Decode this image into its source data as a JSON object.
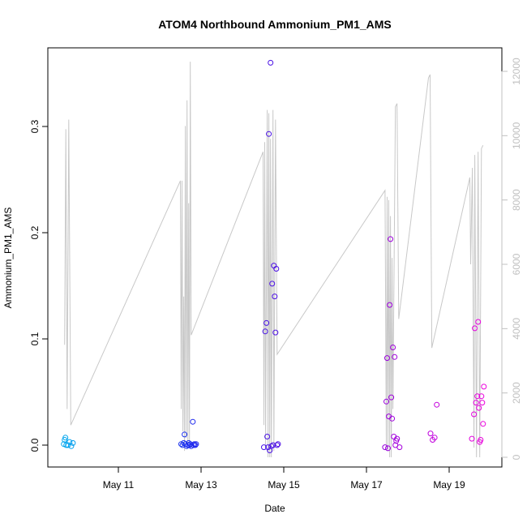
{
  "chart_data": {
    "type": "scatter",
    "title": "ATOM4 Northbound Ammonium_PM1_AMS",
    "xlabel": "Date",
    "ylabel": "Ammonium_PM1_AMS",
    "x_ticks": [
      "May 11",
      "May 13",
      "May 15",
      "May 17",
      "May 19"
    ],
    "x_range_days": [
      9.75,
      19.95
    ],
    "ylim": [
      -0.01,
      0.36
    ],
    "y_ticks": [
      "0.0",
      "0.1",
      "0.2",
      "0.3"
    ],
    "y2_ticks": [
      "0",
      "2000",
      "4000",
      "6000",
      "8000",
      "10000",
      "12000"
    ],
    "y2lim": [
      0,
      12000
    ],
    "point_color_gradient": [
      "#00aaee",
      "#2222ee",
      "#7700dd",
      "#ee00dd"
    ],
    "line_color": "#c8c8c8",
    "grid": false,
    "series": [
      {
        "type": "scatter",
        "points": [
          [
            9.68,
            0.001
          ],
          [
            9.7,
            0.005
          ],
          [
            9.72,
            0.007
          ],
          [
            9.74,
            0.0
          ],
          [
            9.78,
            0.0
          ],
          [
            9.82,
            0.003
          ],
          [
            9.86,
            -0.001
          ],
          [
            9.9,
            0.002
          ],
          [
            12.52,
            0.001
          ],
          [
            12.55,
            0.0
          ],
          [
            12.58,
            0.002
          ],
          [
            12.6,
            0.01
          ],
          [
            12.62,
            0.001
          ],
          [
            12.65,
            -0.001
          ],
          [
            12.68,
            0.0
          ],
          [
            12.7,
            0.002
          ],
          [
            12.72,
            0.0
          ],
          [
            12.74,
            0.001
          ],
          [
            12.76,
            -0.001
          ],
          [
            12.8,
            0.022
          ],
          [
            12.82,
            0.0
          ],
          [
            12.84,
            0.001
          ],
          [
            12.86,
            0.0
          ],
          [
            12.88,
            0.001
          ],
          [
            14.52,
            -0.002
          ],
          [
            14.55,
            0.107
          ],
          [
            14.58,
            0.115
          ],
          [
            14.6,
            0.008
          ],
          [
            14.62,
            -0.002
          ],
          [
            14.64,
            0.293
          ],
          [
            14.66,
            -0.005
          ],
          [
            14.68,
            0.36
          ],
          [
            14.7,
            -0.001
          ],
          [
            14.72,
            0.152
          ],
          [
            14.74,
            0.0
          ],
          [
            14.76,
            0.169
          ],
          [
            14.78,
            0.14
          ],
          [
            14.8,
            0.106
          ],
          [
            14.82,
            0.166
          ],
          [
            14.84,
            0.0
          ],
          [
            14.86,
            0.001
          ],
          [
            17.45,
            -0.002
          ],
          [
            17.48,
            0.041
          ],
          [
            17.5,
            0.082
          ],
          [
            17.52,
            -0.003
          ],
          [
            17.54,
            0.027
          ],
          [
            17.56,
            0.132
          ],
          [
            17.58,
            0.194
          ],
          [
            17.6,
            0.045
          ],
          [
            17.62,
            0.025
          ],
          [
            17.64,
            0.092
          ],
          [
            17.66,
            0.008
          ],
          [
            17.68,
            0.083
          ],
          [
            17.7,
            0.0
          ],
          [
            17.72,
            0.004
          ],
          [
            17.74,
            0.006
          ],
          [
            17.8,
            -0.002
          ],
          [
            18.55,
            0.011
          ],
          [
            18.6,
            0.005
          ],
          [
            18.65,
            0.007
          ],
          [
            18.7,
            0.038
          ],
          [
            19.55,
            0.006
          ],
          [
            19.6,
            0.029
          ],
          [
            19.62,
            0.11
          ],
          [
            19.65,
            0.04
          ],
          [
            19.68,
            0.046
          ],
          [
            19.7,
            0.116
          ],
          [
            19.72,
            0.035
          ],
          [
            19.74,
            0.003
          ],
          [
            19.76,
            0.005
          ],
          [
            19.78,
            0.046
          ],
          [
            19.8,
            0.04
          ],
          [
            19.82,
            0.02
          ],
          [
            19.84,
            0.055
          ]
        ]
      },
      {
        "type": "line",
        "axis": "right",
        "points": [
          [
            9.7,
            3500
          ],
          [
            9.73,
            10200
          ],
          [
            9.76,
            1500
          ],
          [
            9.8,
            10500
          ],
          [
            9.85,
            1000
          ],
          [
            12.5,
            8600
          ],
          [
            12.52,
            1500
          ],
          [
            12.54,
            8600
          ],
          [
            12.56,
            800
          ],
          [
            12.58,
            5000
          ],
          [
            12.6,
            200
          ],
          [
            12.62,
            10300
          ],
          [
            12.64,
            600
          ],
          [
            12.66,
            11100
          ],
          [
            12.68,
            400
          ],
          [
            12.7,
            7900
          ],
          [
            12.72,
            500
          ],
          [
            12.74,
            12300
          ],
          [
            12.76,
            3800
          ],
          [
            14.5,
            9500
          ],
          [
            14.52,
            1000
          ],
          [
            14.54,
            9800
          ],
          [
            14.56,
            300
          ],
          [
            14.6,
            10800
          ],
          [
            14.62,
            0
          ],
          [
            14.64,
            10700
          ],
          [
            14.66,
            0
          ],
          [
            14.68,
            9900
          ],
          [
            14.7,
            0
          ],
          [
            14.74,
            10800
          ],
          [
            14.76,
            200
          ],
          [
            14.8,
            10500
          ],
          [
            14.84,
            3200
          ],
          [
            17.45,
            8300
          ],
          [
            17.48,
            300
          ],
          [
            17.5,
            8100
          ],
          [
            17.52,
            200
          ],
          [
            17.54,
            8000
          ],
          [
            17.56,
            0
          ],
          [
            17.58,
            7500
          ],
          [
            17.6,
            0
          ],
          [
            17.62,
            6200
          ],
          [
            17.64,
            1500
          ],
          [
            17.7,
            10900
          ],
          [
            17.74,
            11000
          ],
          [
            17.78,
            4300
          ],
          [
            18.5,
            11800
          ],
          [
            18.54,
            11900
          ],
          [
            18.58,
            3400
          ],
          [
            19.5,
            8700
          ],
          [
            19.52,
            6000
          ],
          [
            19.56,
            9000
          ],
          [
            19.6,
            300
          ],
          [
            19.62,
            9400
          ],
          [
            19.66,
            0
          ],
          [
            19.7,
            9500
          ],
          [
            19.74,
            0
          ],
          [
            19.78,
            9600
          ],
          [
            19.82,
            9700
          ]
        ]
      }
    ]
  }
}
